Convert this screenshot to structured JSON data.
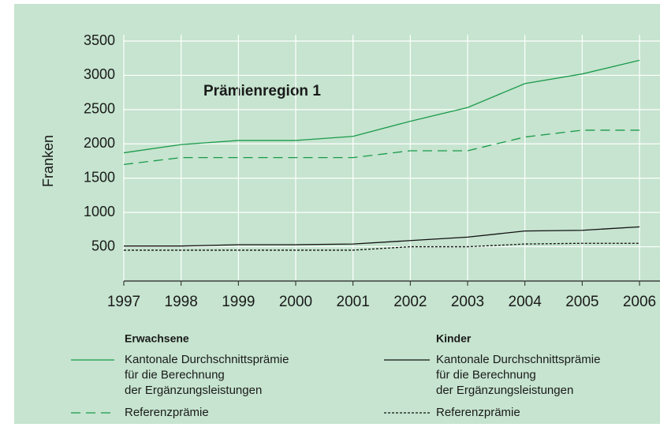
{
  "chart_data": {
    "type": "line",
    "annotation": "Prämienregion 1",
    "ylabel": "Franken",
    "x": [
      1997,
      1998,
      1999,
      2000,
      2001,
      2002,
      2003,
      2004,
      2005,
      2006
    ],
    "xlim": [
      1997,
      2006
    ],
    "ylim": [
      0,
      3500
    ],
    "yticks": [
      500,
      1000,
      1500,
      2000,
      2500,
      3000,
      3500
    ],
    "grid": true,
    "legend_titles": [
      "Erwachsene",
      "Kinder"
    ],
    "series": [
      {
        "name": [
          "Kantonale Durchschnittsprämie",
          "für die Berechnung",
          "der Ergänzungsleistungen"
        ],
        "color": "#1a9a4a",
        "dash": "solid",
        "values": [
          1870,
          1990,
          2050,
          2050,
          2110,
          2330,
          2530,
          2880,
          3020,
          3220
        ]
      },
      {
        "name": [
          "Referenzprämie"
        ],
        "color": "#1a9a4a",
        "dash": "dashed",
        "values": [
          1700,
          1800,
          1800,
          1800,
          1800,
          1900,
          1900,
          2100,
          2200,
          2200
        ]
      },
      {
        "name": [
          "Kantonale Durchschnittsprämie",
          "für die Berechnung",
          "der Ergänzungsleistungen"
        ],
        "color": "#111111",
        "dash": "solid",
        "values": [
          510,
          510,
          530,
          530,
          540,
          590,
          640,
          730,
          740,
          790
        ]
      },
      {
        "name": [
          "Referenzprämie"
        ],
        "color": "#111111",
        "dash": "dotted",
        "values": [
          450,
          450,
          450,
          450,
          450,
          500,
          500,
          540,
          550,
          550
        ]
      }
    ]
  }
}
